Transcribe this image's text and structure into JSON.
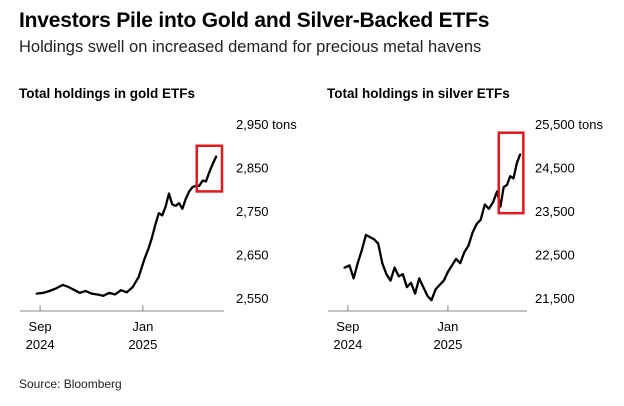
{
  "header": {
    "title": "Investors Pile into Gold and Silver-Backed ETFs",
    "subtitle": "Holdings swell on increased demand for precious metal havens"
  },
  "footer": {
    "source": "Source: Bloomberg"
  },
  "colors": {
    "line": "#000000",
    "highlight": "#e0191f",
    "axis": "#888888"
  },
  "chart_data": [
    {
      "type": "line",
      "title": "Total holdings in gold ETFs",
      "y_unit_label": "tons",
      "yticks": [
        2550,
        2650,
        2750,
        2850,
        2950
      ],
      "ytick_labels": [
        "2,550",
        "2,650",
        "2,750",
        "2,850",
        "2,950"
      ],
      "ylim": [
        2550,
        2950
      ],
      "xlim": [
        "2024-08-20",
        "2025-04-05"
      ],
      "xticks": [
        {
          "date": "2024-09-01",
          "line1": "Sep",
          "line2": "2024"
        },
        {
          "date": "2025-01-01",
          "line1": "Jan",
          "line2": "2025"
        }
      ],
      "highlight": {
        "x": [
          "2025-03-06",
          "2025-04-05"
        ],
        "y": [
          2795,
          2900
        ]
      },
      "series": [
        {
          "x": [
            "2024-08-28",
            "2024-09-05",
            "2024-09-12",
            "2024-09-20",
            "2024-09-28",
            "2024-10-05",
            "2024-10-12",
            "2024-10-18",
            "2024-10-25",
            "2024-11-01",
            "2024-11-08",
            "2024-11-15",
            "2024-11-22",
            "2024-11-29",
            "2024-12-06",
            "2024-12-13",
            "2024-12-20",
            "2024-12-27",
            "2025-01-03",
            "2025-01-08",
            "2025-01-12",
            "2025-01-16",
            "2025-01-20",
            "2025-01-24",
            "2025-01-28",
            "2025-02-01",
            "2025-02-05",
            "2025-02-09",
            "2025-02-13",
            "2025-02-17",
            "2025-02-21",
            "2025-02-25",
            "2025-03-01",
            "2025-03-05",
            "2025-03-09",
            "2025-03-13",
            "2025-03-17",
            "2025-03-21",
            "2025-03-25",
            "2025-03-29"
          ],
          "values": [
            2560,
            2562,
            2566,
            2572,
            2580,
            2575,
            2568,
            2562,
            2566,
            2560,
            2558,
            2555,
            2562,
            2558,
            2568,
            2563,
            2575,
            2598,
            2640,
            2665,
            2690,
            2720,
            2745,
            2740,
            2760,
            2790,
            2765,
            2762,
            2768,
            2755,
            2778,
            2795,
            2805,
            2808,
            2808,
            2820,
            2818,
            2840,
            2858,
            2875
          ]
        }
      ]
    },
    {
      "type": "line",
      "title": "Total holdings in silver ETFs",
      "y_unit_label": "tons",
      "yticks": [
        21500,
        22500,
        23500,
        24500,
        25500
      ],
      "ytick_labels": [
        "21,500",
        "22,500",
        "23,500",
        "24,500",
        "25,500"
      ],
      "ylim": [
        21500,
        25500
      ],
      "xlim": [
        "2024-08-20",
        "2025-04-05"
      ],
      "xticks": [
        {
          "date": "2024-09-01",
          "line1": "Sep",
          "line2": "2024"
        },
        {
          "date": "2025-01-01",
          "line1": "Jan",
          "line2": "2025"
        }
      ],
      "highlight": {
        "x": [
          "2025-03-04",
          "2025-04-03"
        ],
        "y": [
          23450,
          25300
        ]
      },
      "series": [
        {
          "x": [
            "2024-08-28",
            "2024-09-03",
            "2024-09-08",
            "2024-09-13",
            "2024-09-18",
            "2024-09-23",
            "2024-09-28",
            "2024-10-03",
            "2024-10-08",
            "2024-10-13",
            "2024-10-18",
            "2024-10-23",
            "2024-10-28",
            "2024-11-02",
            "2024-11-07",
            "2024-11-12",
            "2024-11-17",
            "2024-11-22",
            "2024-11-27",
            "2024-12-02",
            "2024-12-07",
            "2024-12-12",
            "2024-12-17",
            "2024-12-22",
            "2024-12-27",
            "2025-01-01",
            "2025-01-06",
            "2025-01-11",
            "2025-01-16",
            "2025-01-21",
            "2025-01-26",
            "2025-01-31",
            "2025-02-05",
            "2025-02-10",
            "2025-02-15",
            "2025-02-20",
            "2025-02-25",
            "2025-03-02",
            "2025-03-06",
            "2025-03-10",
            "2025-03-14",
            "2025-03-18",
            "2025-03-22",
            "2025-03-26",
            "2025-03-30"
          ],
          "values": [
            22200,
            22250,
            21950,
            22300,
            22600,
            22950,
            22900,
            22850,
            22750,
            22300,
            22050,
            21900,
            22200,
            22000,
            22050,
            21750,
            21850,
            21600,
            21950,
            21750,
            21550,
            21450,
            21700,
            21800,
            21900,
            22100,
            22250,
            22400,
            22300,
            22550,
            22700,
            23000,
            23200,
            23300,
            23650,
            23550,
            23700,
            23950,
            23600,
            24050,
            24100,
            24300,
            24250,
            24600,
            24800
          ]
        }
      ]
    }
  ]
}
